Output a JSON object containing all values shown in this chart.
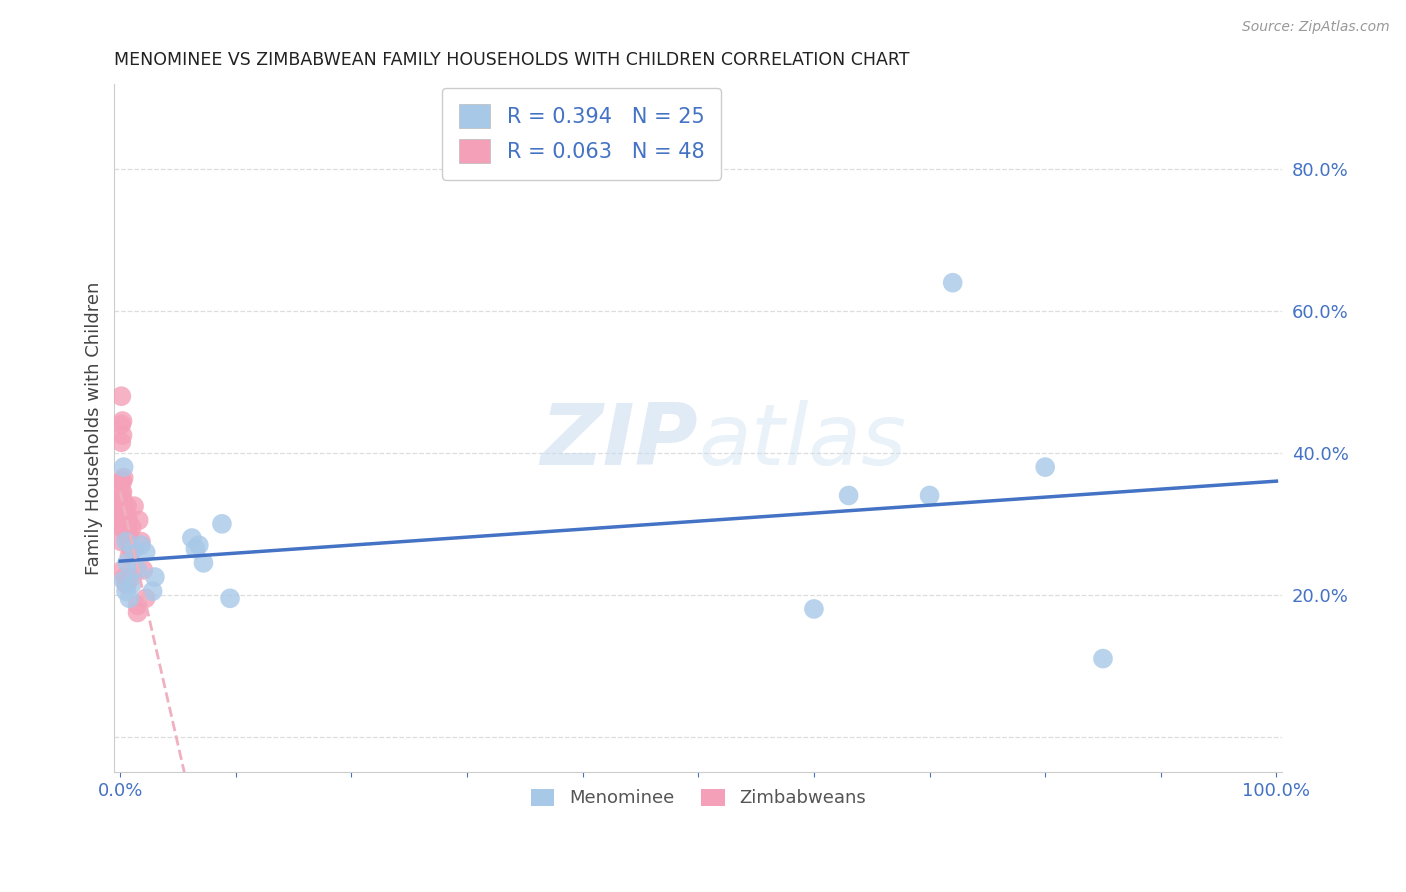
{
  "title": "MENOMINEE VS ZIMBABWEAN FAMILY HOUSEHOLDS WITH CHILDREN CORRELATION CHART",
  "source": "Source: ZipAtlas.com",
  "ylabel": "Family Households with Children",
  "xlim": [
    -0.005,
    1.005
  ],
  "ylim": [
    -0.05,
    0.92
  ],
  "xticks": [
    0.0,
    0.1,
    0.2,
    0.3,
    0.4,
    0.5,
    0.6,
    0.7,
    0.8,
    0.9,
    1.0
  ],
  "xtick_labels": [
    "0.0%",
    "",
    "",
    "",
    "",
    "",
    "",
    "",
    "",
    "",
    "100.0%"
  ],
  "yticks": [
    0.0,
    0.2,
    0.4,
    0.6,
    0.8
  ],
  "ytick_labels": [
    "",
    "20.0%",
    "40.0%",
    "60.0%",
    "80.0%"
  ],
  "menominee_R": 0.394,
  "menominee_N": 25,
  "zimbabwean_R": 0.063,
  "zimbabwean_N": 48,
  "menominee_color": "#a8c8e8",
  "zimbabwean_color": "#f4a0b8",
  "menominee_line_color": "#4472c4",
  "zimbabwean_line_color": "#f0b0c0",
  "bg_color": "#ffffff",
  "grid_color": "#dddddd",
  "title_color": "#222222",
  "axis_tick_color": "#4472c4",
  "source_color": "#999999",
  "legend_text_color": "#4472c4",
  "watermark_color": "#cce0f0",
  "menominee_x": [
    0.003,
    0.005,
    0.006,
    0.005,
    0.008,
    0.01,
    0.012,
    0.015,
    0.018,
    0.022,
    0.028,
    0.03,
    0.062,
    0.065,
    0.068,
    0.072,
    0.088,
    0.095,
    0.6,
    0.63,
    0.7,
    0.72,
    0.8,
    0.85,
    0.003
  ],
  "menominee_y": [
    0.22,
    0.205,
    0.245,
    0.275,
    0.195,
    0.215,
    0.265,
    0.235,
    0.27,
    0.26,
    0.205,
    0.225,
    0.28,
    0.265,
    0.27,
    0.245,
    0.3,
    0.195,
    0.18,
    0.34,
    0.34,
    0.64,
    0.38,
    0.11,
    0.38
  ],
  "zimbabwean_x": [
    0.001,
    0.001,
    0.001,
    0.001,
    0.001,
    0.001,
    0.001,
    0.001,
    0.001,
    0.002,
    0.002,
    0.002,
    0.002,
    0.002,
    0.002,
    0.002,
    0.002,
    0.003,
    0.003,
    0.003,
    0.003,
    0.003,
    0.004,
    0.004,
    0.004,
    0.005,
    0.005,
    0.005,
    0.006,
    0.006,
    0.006,
    0.006,
    0.006,
    0.007,
    0.007,
    0.007,
    0.008,
    0.008,
    0.009,
    0.01,
    0.01,
    0.012,
    0.015,
    0.015,
    0.016,
    0.018,
    0.02,
    0.022
  ],
  "zimbabwean_y": [
    0.48,
    0.44,
    0.415,
    0.36,
    0.345,
    0.33,
    0.31,
    0.295,
    0.275,
    0.445,
    0.425,
    0.36,
    0.345,
    0.335,
    0.305,
    0.295,
    0.235,
    0.365,
    0.33,
    0.315,
    0.305,
    0.295,
    0.325,
    0.315,
    0.225,
    0.305,
    0.285,
    0.215,
    0.325,
    0.305,
    0.295,
    0.285,
    0.215,
    0.305,
    0.285,
    0.275,
    0.285,
    0.255,
    0.265,
    0.225,
    0.295,
    0.325,
    0.185,
    0.175,
    0.305,
    0.275,
    0.235,
    0.195
  ]
}
